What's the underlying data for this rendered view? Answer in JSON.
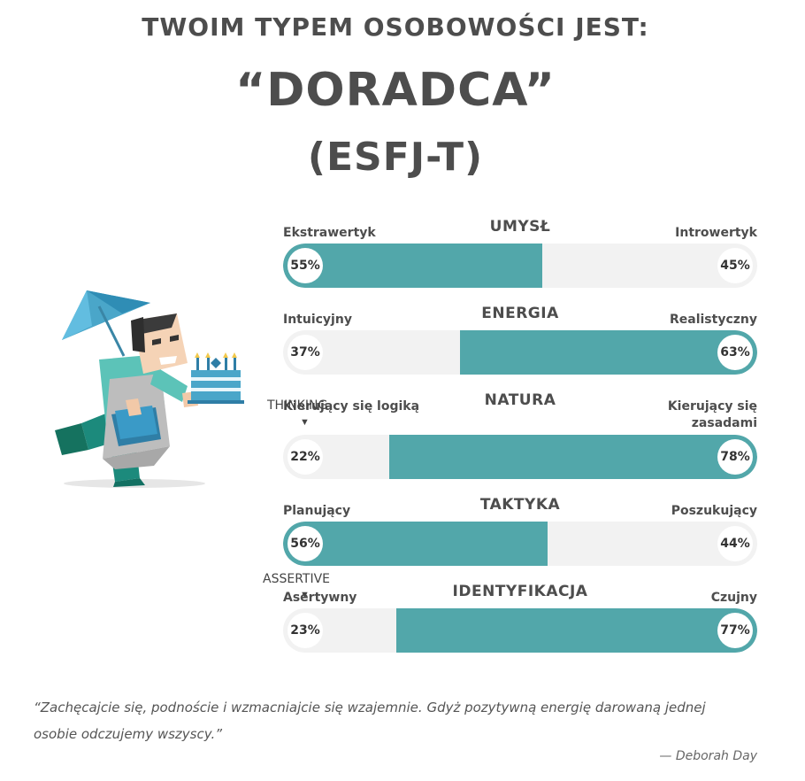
{
  "header": {
    "kicker": "TWOIM TYPEM OSOBOWOŚCI JEST:",
    "type_name": "“DORADCA”",
    "type_code": "(ESFJ-T)"
  },
  "traits": [
    {
      "heading": "UMYSŁ",
      "left_label": "Ekstrawertyk",
      "right_label": "Introwertyk",
      "left_pct": "55%",
      "right_pct": "45%",
      "value": 55,
      "dominant": "left"
    },
    {
      "heading": "ENERGIA",
      "left_label": "Intuicyjny",
      "right_label": "Realistyczny",
      "left_pct": "37%",
      "right_pct": "63%",
      "value": 63,
      "dominant": "right"
    },
    {
      "heading": "NATURA",
      "left_label": "Kierujący się logiką",
      "right_label": "Kierujący się zasadami",
      "left_pct": "22%",
      "right_pct": "78%",
      "value": 78,
      "dominant": "right"
    },
    {
      "heading": "TAKTYKA",
      "left_label": "Planujący",
      "right_label": "Poszukujący",
      "left_pct": "56%",
      "right_pct": "44%",
      "value": 56,
      "dominant": "left"
    },
    {
      "heading": "IDENTYFIKACJA",
      "left_label": "Asertywny",
      "right_label": "Czujny",
      "left_pct": "23%",
      "right_pct": "77%",
      "value": 77,
      "dominant": "right"
    }
  ],
  "markers": {
    "thinking": "THINKING",
    "assertive": "ASSERTIVE"
  },
  "quote": {
    "text": "“Zachęcajcie się, podnoście i wzmacniajcie się wzajemnie. Gdyż pozytywną energię darowaną jednej osobie odczujemy wszyscy.”",
    "author": "— Deborah Day"
  },
  "colors": {
    "accent": "#52a7aa",
    "track": "#f2f2f2",
    "text": "#4d4d4d"
  },
  "icons": {
    "illustration": "advisor-character-with-umbrella-and-cake",
    "marker": "down-triangle-icon"
  }
}
